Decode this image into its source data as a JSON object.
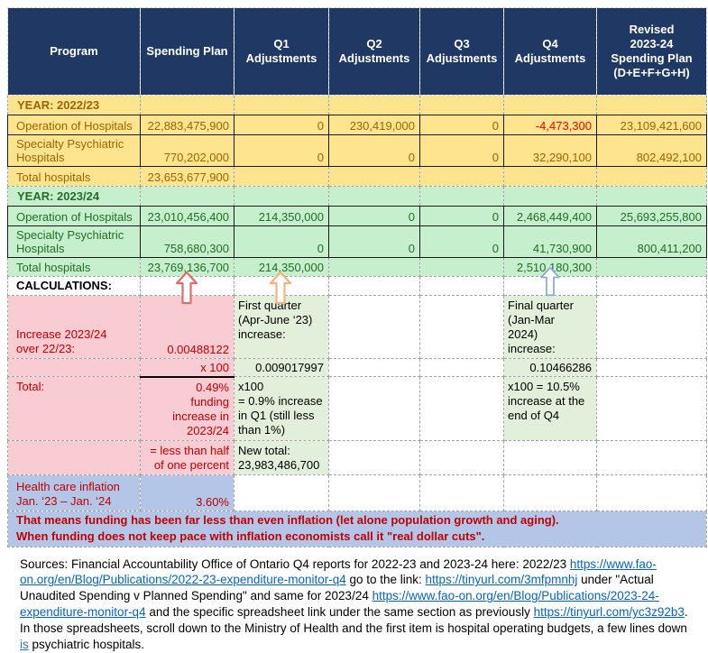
{
  "theme": {
    "header_bg": "#1F3864",
    "yellow_bg": "#FFE48F",
    "yellow_text": "#9C6500",
    "green_bg": "#C6EFCE",
    "green_text": "#256D25",
    "calc_green_bg": "#E2EFDA",
    "pink_bg": "#F9CBD2",
    "dark_red_text": "#C00000",
    "negative_red": "#FF0000",
    "blue_bg": "#B4C6E7",
    "link_color": "#0563C1",
    "arrow_red": "#E06B6B",
    "arrow_orange": "#F4B183",
    "arrow_blue": "#8FAADC"
  },
  "header": {
    "columns": [
      "Program",
      "Spending Plan",
      "Q1 Adjustments",
      "Q2 Adjustments",
      "Q3 Adjustments",
      "Q4 Adjustments",
      "Revised\n2023-24\nSpending Plan\n(D+E+F+G+H)"
    ]
  },
  "sections": {
    "y2223": {
      "year_label": "YEAR: 2022/23",
      "rows": [
        {
          "c0": "Operation of Hospitals",
          "c1": "22,883,475,900",
          "c2": "0",
          "c3": "230,419,000",
          "c4": "0",
          "c5": "-4,473,300",
          "c6": "23,109,421,600"
        },
        {
          "c0": "Specialty Psychiatric Hospitals",
          "c1": "770,202,000",
          "c2": "0",
          "c3": "0",
          "c4": "0",
          "c5": "32,290,100",
          "c6": "802,492,100"
        }
      ],
      "total_label": "Total hospitals",
      "total_spending": "23,653,677,900"
    },
    "y2324": {
      "year_label": "YEAR: 2023/24",
      "rows": [
        {
          "c0": "Operation of Hospitals",
          "c1": "23,010,456,400",
          "c2": "214,350,000",
          "c3": "0",
          "c4": "0",
          "c5": "2,468,449,400",
          "c6": "25,693,255,800"
        },
        {
          "c0": "Specialty Psychiatric Hospitals",
          "c1": "758,680,300",
          "c2": "0",
          "c3": "0",
          "c4": "0",
          "c5": "41,730,900",
          "c6": "800,411,200"
        }
      ],
      "total_label": "Total hospitals",
      "total_spending": "23,769,136,700",
      "total_q1": "214,350,000",
      "total_q4": "2,510,180,300"
    }
  },
  "calc": {
    "title": "CALCULATIONS:",
    "pink": {
      "increase_label": "Increase 2023/24\nover 22/23:",
      "increase_value": "0.00488122",
      "x100": "x 100",
      "total_label": "Total:",
      "total_value": "0.49%\nfunding\nincrease in\n2023/24",
      "less_than": "= less than half\nof one percent"
    },
    "q1": {
      "label": "First quarter\n(Apr-June ‘23)\nincrease:",
      "value": "0.009017997",
      "note": "x100\n= 0.9% increase\nin Q1 (still less\nthan 1%)",
      "new_total": "New total:\n23,983,486,700"
    },
    "q4": {
      "label": "Final quarter\n(Jan-Mar\n2024)\nincrease:",
      "value": "0.10466286",
      "note": "x100 = 10.5%\nincrease at the\nend of Q4"
    }
  },
  "inflation": {
    "label": "Health care inflation\nJan. ‘23 – Jan. ‘24",
    "value": "3.60%"
  },
  "banner": {
    "line1": "That means funding has been far less than even inflation (let alone population growth and aging).",
    "line2": "When funding does not keep pace with inflation economists call it \"real dollar cuts\"."
  },
  "sources": {
    "segments": [
      {
        "type": "text",
        "text": "Sources: Financial Accountability Office of Ontario Q4 reports for 2022-23 and 2023-24 here: 2022/23 "
      },
      {
        "type": "link",
        "text": "https://www.fao-on.org/en/Blog/Publications/2022-23-expenditure-monitor-q4"
      },
      {
        "type": "text",
        "text": " go to the link: "
      },
      {
        "type": "link",
        "text": "https://tinyurl.com/3mfpmnhj"
      },
      {
        "type": "text",
        "text": " under \"Actual Unaudited Spending v Planned Spending\"  and same for 2023/24 "
      },
      {
        "type": "link",
        "text": "https://www.fao-on.org/en/Blog/Publications/2023-24-expenditure-monitor-q4"
      },
      {
        "type": "text",
        "text": " and the specific spreadsheet link under the same section as previously "
      },
      {
        "type": "link",
        "text": "https://tinyurl.com/yc3z92b3"
      },
      {
        "type": "text",
        "text": ". In those spreadsheets, scroll down to the Ministry of Health and the first item is hospital operating budgets, a few lines down "
      },
      {
        "type": "underline",
        "text": "is"
      },
      {
        "type": "text",
        "text": " psychiatric hospitals."
      }
    ]
  }
}
